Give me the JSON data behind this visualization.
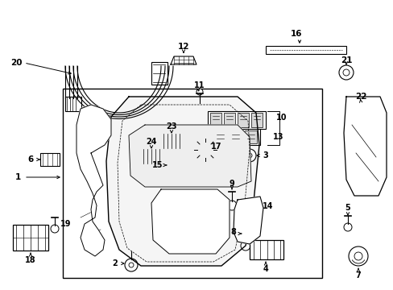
{
  "bg_color": "#ffffff",
  "line_color": "#000000",
  "text_color": "#000000",
  "fig_width": 4.89,
  "fig_height": 3.6,
  "dpi": 100
}
